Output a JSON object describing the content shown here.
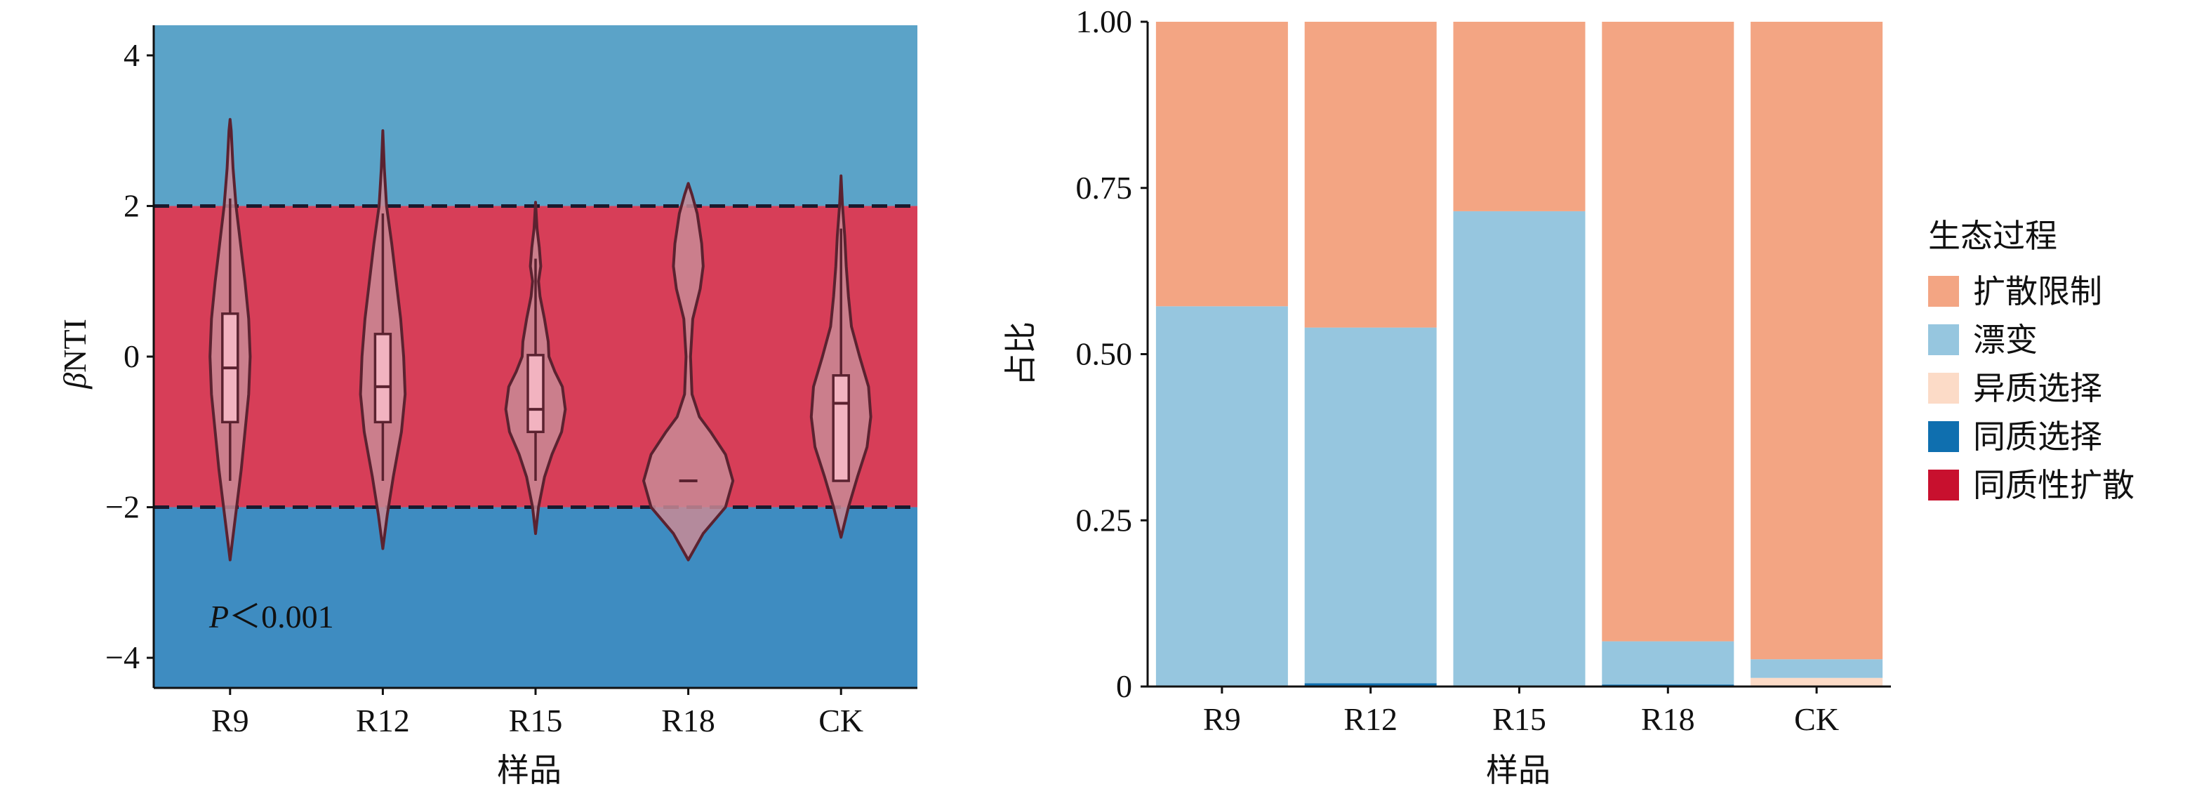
{
  "chart_data": [
    {
      "type": "violin",
      "ylabel_prefix": "β",
      "ylabel": "NTI",
      "xlabel": "样品",
      "categories": [
        "R9",
        "R12",
        "R15",
        "R18",
        "CK"
      ],
      "ylim": [
        -4.4,
        4.4
      ],
      "yticks": [
        4,
        2,
        0,
        -2,
        -4
      ],
      "ytick_labels": [
        "4",
        "2",
        "0",
        "−2",
        "−4"
      ],
      "reference_lines": [
        2,
        -2
      ],
      "bands": [
        {
          "from": 2,
          "to": 4.4,
          "color": "#5BA3C8"
        },
        {
          "from": -2,
          "to": 2,
          "color": "#D73E58"
        },
        {
          "from": -4.4,
          "to": -2,
          "color": "#3E8CC1"
        }
      ],
      "violin_color": "#C98A95",
      "box_color": "#F2B3C0",
      "outline_color": "#5B2230",
      "annotation": {
        "italic": "P",
        "text": "＜0.001"
      },
      "series": [
        {
          "name": "R9",
          "min": -2.7,
          "max": 3.15,
          "q1": -0.87,
          "median": -0.15,
          "q3": 0.57,
          "whisker_low": -1.65,
          "whisker_high": 2.1,
          "profile": [
            [
              -2.7,
              0.0
            ],
            [
              -2.3,
              0.05
            ],
            [
              -1.9,
              0.1
            ],
            [
              -1.5,
              0.15
            ],
            [
              -1.0,
              0.2
            ],
            [
              -0.5,
              0.25
            ],
            [
              0.0,
              0.27
            ],
            [
              0.5,
              0.25
            ],
            [
              1.0,
              0.2
            ],
            [
              1.5,
              0.14
            ],
            [
              2.0,
              0.08
            ],
            [
              2.5,
              0.04
            ],
            [
              3.0,
              0.015
            ],
            [
              3.15,
              0.0
            ]
          ]
        },
        {
          "name": "R12",
          "min": -2.55,
          "max": 3.0,
          "q1": -0.87,
          "median": -0.4,
          "q3": 0.3,
          "whisker_low": -1.65,
          "whisker_high": 1.9,
          "profile": [
            [
              -2.55,
              0.0
            ],
            [
              -2.1,
              0.06
            ],
            [
              -1.6,
              0.14
            ],
            [
              -1.0,
              0.25
            ],
            [
              -0.5,
              0.3
            ],
            [
              0.0,
              0.28
            ],
            [
              0.5,
              0.24
            ],
            [
              1.0,
              0.18
            ],
            [
              1.5,
              0.12
            ],
            [
              2.0,
              0.05
            ],
            [
              2.5,
              0.02
            ],
            [
              3.0,
              0.0
            ]
          ]
        },
        {
          "name": "R15",
          "min": -2.35,
          "max": 2.05,
          "q1": -1.0,
          "median": -0.7,
          "q3": 0.02,
          "whisker_low": -1.65,
          "whisker_high": 1.3,
          "profile": [
            [
              -2.35,
              0.0
            ],
            [
              -2.0,
              0.04
            ],
            [
              -1.6,
              0.12
            ],
            [
              -1.3,
              0.22
            ],
            [
              -1.0,
              0.35
            ],
            [
              -0.7,
              0.4
            ],
            [
              -0.4,
              0.36
            ],
            [
              -0.2,
              0.26
            ],
            [
              0.0,
              0.18
            ],
            [
              0.2,
              0.17
            ],
            [
              0.5,
              0.12
            ],
            [
              0.8,
              0.06
            ],
            [
              1.0,
              0.04
            ],
            [
              1.2,
              0.07
            ],
            [
              1.45,
              0.05
            ],
            [
              1.7,
              0.02
            ],
            [
              2.05,
              0.0
            ]
          ]
        },
        {
          "name": "R18",
          "min": -2.7,
          "max": 2.3,
          "median": -1.65,
          "profile": [
            [
              -2.7,
              0.0
            ],
            [
              -2.35,
              0.2
            ],
            [
              -2.0,
              0.5
            ],
            [
              -1.65,
              0.6
            ],
            [
              -1.3,
              0.5
            ],
            [
              -1.0,
              0.3
            ],
            [
              -0.8,
              0.15
            ],
            [
              -0.5,
              0.05
            ],
            [
              0.0,
              0.03
            ],
            [
              0.5,
              0.06
            ],
            [
              0.9,
              0.16
            ],
            [
              1.2,
              0.2
            ],
            [
              1.5,
              0.18
            ],
            [
              1.9,
              0.12
            ],
            [
              2.15,
              0.05
            ],
            [
              2.3,
              0.0
            ]
          ]
        },
        {
          "name": "CK",
          "min": -2.4,
          "max": 2.4,
          "q1": -1.65,
          "median": -0.62,
          "q3": -0.25,
          "whisker_low": -1.65,
          "whisker_high": 1.7,
          "profile": [
            [
              -2.4,
              0.0
            ],
            [
              -2.0,
              0.1
            ],
            [
              -1.6,
              0.22
            ],
            [
              -1.2,
              0.35
            ],
            [
              -0.8,
              0.4
            ],
            [
              -0.4,
              0.37
            ],
            [
              0.0,
              0.25
            ],
            [
              0.4,
              0.14
            ],
            [
              0.8,
              0.1
            ],
            [
              1.2,
              0.07
            ],
            [
              1.6,
              0.05
            ],
            [
              2.0,
              0.02
            ],
            [
              2.4,
              0.0
            ]
          ]
        }
      ]
    },
    {
      "type": "bar",
      "stacked": true,
      "categories": [
        "R9",
        "R12",
        "R15",
        "R18",
        "CK"
      ],
      "xlabel": "样品",
      "ylabel": "占比",
      "ylim": [
        0,
        1
      ],
      "yticks": [
        0,
        0.25,
        0.5,
        0.75,
        1.0
      ],
      "ytick_labels": [
        "0",
        "0.25",
        "0.50",
        "0.75",
        "1.00"
      ],
      "legend_title": "生态过程",
      "legend_position": "right",
      "series": [
        {
          "name": "同质性扩散",
          "color": "#C8102E",
          "values": [
            0,
            0,
            0,
            0,
            0
          ]
        },
        {
          "name": "同质选择",
          "color": "#0F6FAF",
          "values": [
            0,
            0.005,
            0,
            0.003,
            0
          ]
        },
        {
          "name": "异质选择",
          "color": "#FCDBC7",
          "values": [
            0,
            0,
            0,
            0,
            0.013
          ]
        },
        {
          "name": "漂变",
          "color": "#96C6DF",
          "values": [
            0.572,
            0.535,
            0.715,
            0.065,
            0.028
          ]
        },
        {
          "name": "扩散限制",
          "color": "#F3A583",
          "values": [
            0.428,
            0.46,
            0.285,
            0.932,
            0.959
          ]
        }
      ],
      "legend_order": [
        "扩散限制",
        "漂变",
        "异质选择",
        "同质选择",
        "同质性扩散"
      ]
    }
  ]
}
